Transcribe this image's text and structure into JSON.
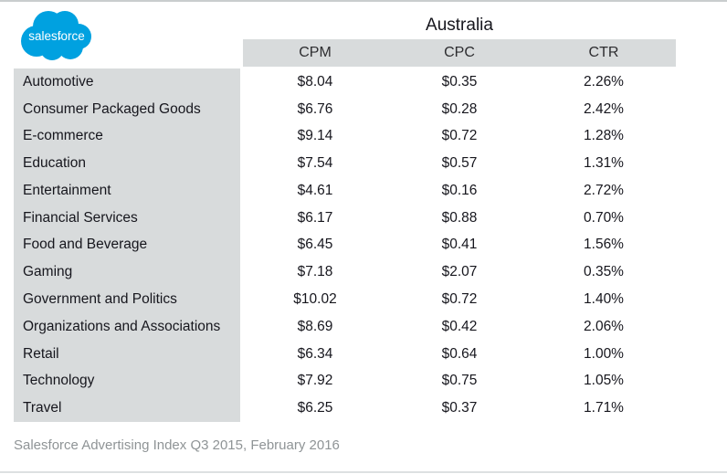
{
  "brand": {
    "logo_text": "salesforce",
    "logo_color": "#00A1E0",
    "logo_text_color": "#ffffff"
  },
  "title": "Australia",
  "source_note": "Salesforce Advertising Index Q3 2015, February 2016",
  "colors": {
    "header_bg": "#d8dbdc",
    "label_column_bg": "#d8dbdc",
    "body_text": "#16161d",
    "footer_text": "#8f9496",
    "top_rule": "#c9cdce",
    "bottom_rule": "#dde0e1"
  },
  "chart_data": {
    "type": "table",
    "title": "Australia",
    "columns": [
      "CPM",
      "CPC",
      "CTR"
    ],
    "row_header": "",
    "rows": [
      {
        "label": "Automotive",
        "cpm": "$8.04",
        "cpc": "$0.35",
        "ctr": "2.26%"
      },
      {
        "label": "Consumer Packaged Goods",
        "cpm": "$6.76",
        "cpc": "$0.28",
        "ctr": "2.42%"
      },
      {
        "label": "E-commerce",
        "cpm": "$9.14",
        "cpc": "$0.72",
        "ctr": "1.28%"
      },
      {
        "label": "Education",
        "cpm": "$7.54",
        "cpc": "$0.57",
        "ctr": "1.31%"
      },
      {
        "label": "Entertainment",
        "cpm": "$4.61",
        "cpc": "$0.16",
        "ctr": "2.72%"
      },
      {
        "label": "Financial Services",
        "cpm": "$6.17",
        "cpc": "$0.88",
        "ctr": "0.70%"
      },
      {
        "label": "Food and Beverage",
        "cpm": "$6.45",
        "cpc": "$0.41",
        "ctr": "1.56%"
      },
      {
        "label": "Gaming",
        "cpm": "$7.18",
        "cpc": "$2.07",
        "ctr": "0.35%"
      },
      {
        "label": "Government and Politics",
        "cpm": "$10.02",
        "cpc": "$0.72",
        "ctr": "1.40%"
      },
      {
        "label": "Organizations and Associations",
        "cpm": "$8.69",
        "cpc": "$0.42",
        "ctr": "2.06%"
      },
      {
        "label": "Retail",
        "cpm": "$6.34",
        "cpc": "$0.64",
        "ctr": "1.00%"
      },
      {
        "label": "Technology",
        "cpm": "$7.92",
        "cpc": "$0.75",
        "ctr": "1.05%"
      },
      {
        "label": "Travel",
        "cpm": "$6.25",
        "cpc": "$0.37",
        "ctr": "1.71%"
      }
    ]
  }
}
